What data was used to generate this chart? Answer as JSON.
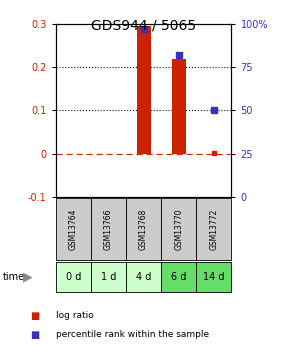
{
  "title": "GDS944 / 5065",
  "samples": [
    "GSM13764",
    "GSM13766",
    "GSM13768",
    "GSM13770",
    "GSM13772"
  ],
  "time_labels": [
    "0 d",
    "1 d",
    "4 d",
    "6 d",
    "14 d"
  ],
  "log_ratio": [
    0.0,
    0.0,
    0.295,
    0.22,
    0.002
  ],
  "percentile_rank": [
    null,
    null,
    97.0,
    82.0,
    50.0
  ],
  "ylim_left": [
    -0.1,
    0.3
  ],
  "ylim_right": [
    0,
    100
  ],
  "yticks_left": [
    -0.1,
    0.0,
    0.1,
    0.2,
    0.3
  ],
  "yticks_right": [
    0,
    25,
    50,
    75,
    100
  ],
  "ytick_labels_right": [
    "0",
    "25",
    "50",
    "75",
    "100%"
  ],
  "bar_color": "#cc2200",
  "dot_color": "#cc2200",
  "square_color": "#3333bb",
  "hline_color_dashed": "#cc3300",
  "hline_color_dotted": "#111111",
  "sample_box_color": "#cccccc",
  "time_colors": [
    "#ccffcc",
    "#ccffcc",
    "#ccffcc",
    "#66dd66",
    "#66dd66"
  ],
  "bg_color": "#ffffff",
  "legend_log_ratio": "log ratio",
  "legend_percentile": "percentile rank within the sample",
  "title_fontsize": 10,
  "tick_fontsize": 7,
  "legend_fontsize": 6.5,
  "sample_fontsize": 5.5,
  "time_fontsize": 7
}
